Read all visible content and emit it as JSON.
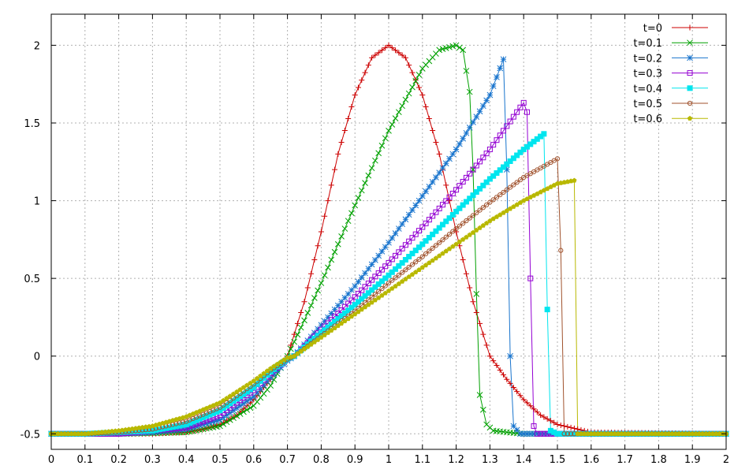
{
  "chart_data": {
    "type": "line",
    "xlim": [
      0,
      2
    ],
    "ylim": [
      -0.6,
      2.2
    ],
    "x_ticks": [
      0,
      0.1,
      0.2,
      0.3,
      0.4,
      0.5,
      0.6,
      0.7,
      0.8,
      0.9,
      1,
      1.1,
      1.2,
      1.3,
      1.4,
      1.5,
      1.6,
      1.7,
      1.8,
      1.9,
      2
    ],
    "y_ticks": [
      -0.5,
      0,
      0.5,
      1,
      1.5,
      2
    ],
    "x_tick_labels": [
      "0",
      "0.1",
      "0.2",
      "0.3",
      "0.4",
      "0.5",
      "0.6",
      "0.7",
      "0.8",
      "0.9",
      "1",
      "1.1",
      "1.2",
      "1.3",
      "1.4",
      "1.5",
      "1.6",
      "1.7",
      "1.8",
      "1.9",
      "2"
    ],
    "y_tick_labels": [
      "-0.5",
      "0",
      "0.5",
      "1",
      "1.5",
      "2"
    ],
    "grid": true,
    "legend_position": "top-right",
    "series": [
      {
        "name": "t=0",
        "color": "#cc0000",
        "marker": "plus",
        "sample_step": 0.01,
        "x": [
          0,
          0.1,
          0.2,
          0.3,
          0.4,
          0.45,
          0.5,
          0.55,
          0.6,
          0.65,
          0.7,
          0.75,
          0.8,
          0.85,
          0.9,
          0.95,
          1.0,
          1.05,
          1.1,
          1.15,
          1.2,
          1.25,
          1.3,
          1.35,
          1.4,
          1.45,
          1.5,
          1.6,
          2.0
        ],
        "y": [
          -0.5,
          -0.5,
          -0.5,
          -0.5,
          -0.49,
          -0.47,
          -0.44,
          -0.38,
          -0.28,
          -0.15,
          0.0,
          0.35,
          0.8,
          1.3,
          1.68,
          1.92,
          2.0,
          1.92,
          1.68,
          1.3,
          0.8,
          0.35,
          0.0,
          -0.15,
          -0.28,
          -0.38,
          -0.44,
          -0.49,
          -0.5
        ]
      },
      {
        "name": "t=0.1",
        "color": "#00a000",
        "marker": "cross",
        "sample_step": 0.01,
        "x": [
          0,
          0.2,
          0.4,
          0.5,
          0.6,
          0.65,
          0.7,
          0.75,
          0.8,
          0.9,
          1.0,
          1.1,
          1.15,
          1.2,
          1.22,
          1.24,
          1.25,
          1.26,
          1.27,
          1.29,
          1.31,
          1.35,
          1.4,
          2.0
        ],
        "y": [
          -0.5,
          -0.5,
          -0.49,
          -0.45,
          -0.32,
          -0.19,
          0.0,
          0.23,
          0.47,
          0.97,
          1.45,
          1.85,
          1.97,
          2.0,
          1.97,
          1.7,
          1.2,
          0.4,
          -0.25,
          -0.44,
          -0.48,
          -0.49,
          -0.5,
          -0.5
        ]
      },
      {
        "name": "t=0.2",
        "color": "#1874cd",
        "marker": "star",
        "sample_step": 0.01,
        "x": [
          0,
          0.2,
          0.3,
          0.4,
          0.5,
          0.6,
          0.65,
          0.7,
          0.72,
          0.8,
          0.9,
          1.0,
          1.1,
          1.2,
          1.3,
          1.34,
          1.35,
          1.36,
          1.37,
          1.39,
          2.0
        ],
        "y": [
          -0.5,
          -0.5,
          -0.49,
          -0.47,
          -0.41,
          -0.26,
          -0.14,
          -0.03,
          0.0,
          0.2,
          0.45,
          0.73,
          1.03,
          1.33,
          1.68,
          1.91,
          1.2,
          0.0,
          -0.45,
          -0.5,
          -0.5
        ]
      },
      {
        "name": "t=0.3",
        "color": "#9400d3",
        "marker": "square",
        "sample_step": 0.01,
        "x": [
          0,
          0.2,
          0.3,
          0.4,
          0.5,
          0.6,
          0.65,
          0.7,
          0.72,
          0.8,
          0.9,
          1.0,
          1.1,
          1.2,
          1.3,
          1.4,
          1.41,
          1.42,
          1.43,
          1.44,
          1.46,
          2.0
        ],
        "y": [
          -0.5,
          -0.5,
          -0.48,
          -0.46,
          -0.38,
          -0.22,
          -0.11,
          -0.02,
          0.0,
          0.17,
          0.38,
          0.6,
          0.83,
          1.07,
          1.33,
          1.63,
          1.57,
          0.5,
          -0.45,
          -0.5,
          -0.5,
          -0.5
        ]
      },
      {
        "name": "t=0.4",
        "color": "#00e5ee",
        "marker": "filled-square",
        "sample_step": 0.01,
        "x": [
          0,
          0.1,
          0.2,
          0.3,
          0.4,
          0.5,
          0.6,
          0.65,
          0.7,
          0.72,
          0.8,
          0.9,
          1.0,
          1.1,
          1.2,
          1.3,
          1.4,
          1.46,
          1.47,
          1.48,
          1.5,
          2.0
        ],
        "y": [
          -0.5,
          -0.5,
          -0.49,
          -0.48,
          -0.44,
          -0.35,
          -0.2,
          -0.1,
          -0.02,
          0.0,
          0.15,
          0.33,
          0.52,
          0.72,
          0.93,
          1.14,
          1.33,
          1.43,
          0.3,
          -0.48,
          -0.5,
          -0.5
        ]
      },
      {
        "name": "t=0.5",
        "color": "#a0522d",
        "marker": "circle",
        "sample_step": 0.01,
        "x": [
          0,
          0.1,
          0.2,
          0.3,
          0.4,
          0.5,
          0.6,
          0.65,
          0.7,
          0.72,
          0.8,
          0.9,
          1.0,
          1.1,
          1.2,
          1.3,
          1.4,
          1.5,
          1.51,
          1.52,
          1.53,
          2.0
        ],
        "y": [
          -0.5,
          -0.5,
          -0.49,
          -0.47,
          -0.42,
          -0.33,
          -0.18,
          -0.09,
          -0.02,
          0.0,
          0.13,
          0.29,
          0.47,
          0.64,
          0.82,
          0.99,
          1.15,
          1.27,
          0.68,
          -0.5,
          -0.5,
          -0.5
        ]
      },
      {
        "name": "t=0.6",
        "color": "#b8b800",
        "marker": "filled-pentagon",
        "sample_step": 0.01,
        "x": [
          0,
          0.1,
          0.2,
          0.3,
          0.4,
          0.5,
          0.6,
          0.65,
          0.7,
          0.72,
          0.8,
          0.9,
          1.0,
          1.1,
          1.2,
          1.3,
          1.4,
          1.5,
          1.55,
          1.56,
          1.57,
          2.0
        ],
        "y": [
          -0.5,
          -0.5,
          -0.48,
          -0.45,
          -0.39,
          -0.3,
          -0.16,
          -0.08,
          -0.01,
          0.0,
          0.12,
          0.27,
          0.42,
          0.57,
          0.72,
          0.87,
          1.0,
          1.11,
          1.13,
          -0.5,
          -0.5,
          -0.5
        ]
      }
    ]
  }
}
